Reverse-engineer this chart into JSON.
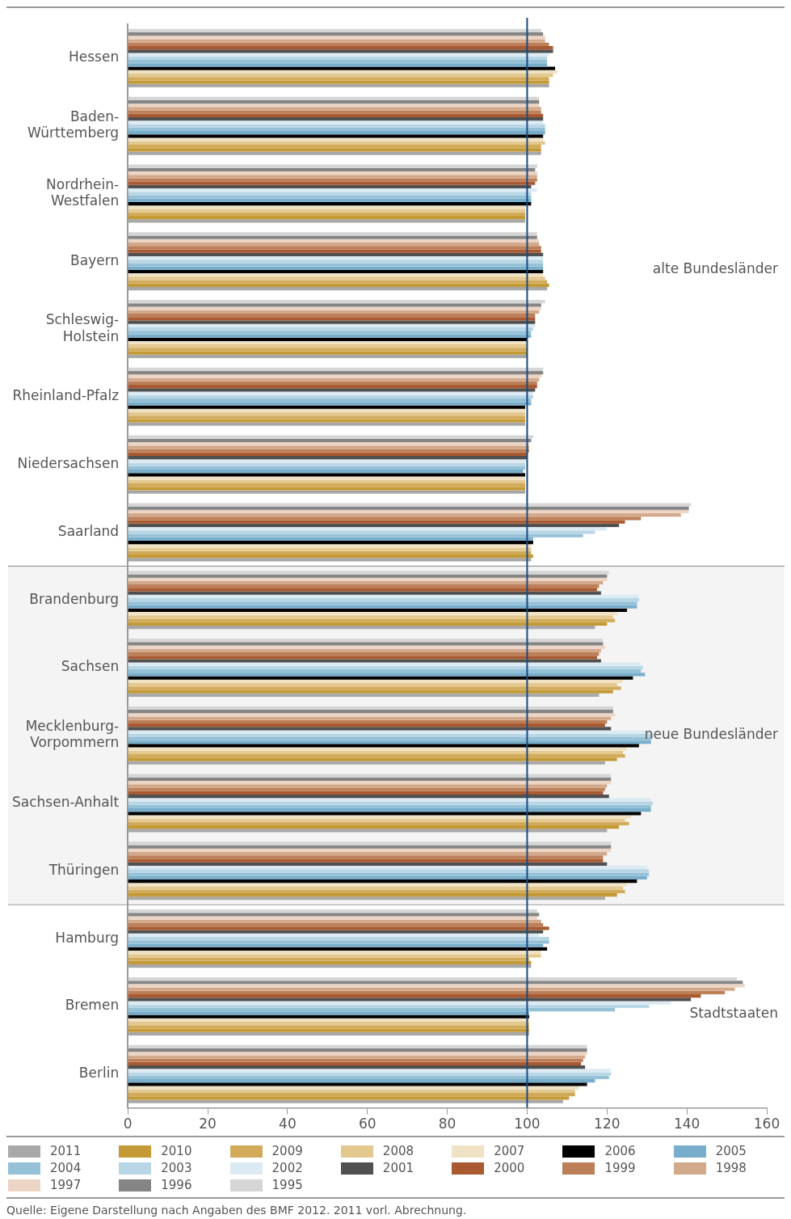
{
  "chart_data": {
    "type": "bar",
    "orientation": "horizontal",
    "categories": [
      "Hessen",
      "Baden-Württemberg",
      "Nordrhein-Westfalen",
      "Bayern",
      "Schleswig-Holstein",
      "Rheinland-Pfalz",
      "Niedersachsen",
      "Saarland",
      "Brandenburg",
      "Sachsen",
      "Mecklenburg-Vorpommern",
      "Sachsen-Anhalt",
      "Thüringen",
      "Hamburg",
      "Bremen",
      "Berlin"
    ],
    "xlim": [
      0,
      160
    ],
    "xticks": [
      0,
      20,
      40,
      60,
      80,
      100,
      120,
      140,
      160
    ],
    "grid": false,
    "legend": "bottom",
    "series": [
      {
        "name": "2011",
        "color": "#a8a8a8",
        "values": [
          105.5,
          103.5,
          99.5,
          105,
          100,
          99.5,
          99.5,
          101,
          117,
          118,
          119.5,
          120,
          119.5,
          101,
          100.5,
          109
        ]
      },
      {
        "name": "2010",
        "color": "#c49a36",
        "values": [
          105.5,
          103.5,
          99.5,
          105.5,
          100,
          99.5,
          99.5,
          101.5,
          120,
          121.5,
          122.5,
          123,
          122.5,
          101,
          100.5,
          110.5
        ]
      },
      {
        "name": "2009",
        "color": "#d2ab5a",
        "values": [
          105.5,
          103.5,
          99.5,
          105,
          100,
          99.5,
          99.5,
          101,
          122,
          123.5,
          124.5,
          125.5,
          124.5,
          100.5,
          100.5,
          112
        ]
      },
      {
        "name": "2008",
        "color": "#e3c88f",
        "values": [
          106.5,
          104.5,
          99.5,
          104.5,
          100,
          99.5,
          99.5,
          101,
          121.5,
          122.5,
          124,
          124.5,
          124,
          103.5,
          100.5,
          112
        ]
      },
      {
        "name": "2007",
        "color": "#f0e2c4",
        "values": [
          107.5,
          104,
          99.5,
          104,
          100,
          99.5,
          99.5,
          101,
          122.5,
          124,
          125,
          126,
          125,
          103.5,
          100.5,
          113
        ]
      },
      {
        "name": "2006",
        "color": "#000000",
        "values": [
          107,
          104,
          101,
          104,
          100,
          99.5,
          99.5,
          101.5,
          125,
          126.5,
          128,
          128.5,
          127.5,
          105,
          100.5,
          115
        ]
      },
      {
        "name": "2005",
        "color": "#78aecb",
        "values": [
          105,
          104.5,
          101,
          104,
          101,
          101,
          99,
          101.5,
          127.5,
          129.5,
          131,
          131,
          130,
          104,
          100.5,
          117
        ]
      },
      {
        "name": "2004",
        "color": "#95c1d7",
        "values": [
          105,
          104.5,
          101,
          104,
          101,
          101,
          99.5,
          114,
          127.5,
          128.5,
          131,
          131,
          130.5,
          105.5,
          122,
          120.5
        ]
      },
      {
        "name": "2003",
        "color": "#b9d6e6",
        "values": [
          105,
          104.5,
          101,
          104,
          101.5,
          101.5,
          99.5,
          117,
          128,
          129,
          131.5,
          131.5,
          130.5,
          105.5,
          130.5,
          121
        ]
      },
      {
        "name": "2002",
        "color": "#dcebf3",
        "values": [
          105.5,
          104,
          102.5,
          104,
          102,
          101.5,
          99.5,
          120,
          128,
          128.5,
          131,
          131,
          130,
          103,
          136,
          121
        ]
      },
      {
        "name": "2001",
        "color": "#505050",
        "values": [
          106.5,
          104,
          101,
          104,
          102,
          102,
          100,
          123,
          118.5,
          118.5,
          121,
          120.5,
          120,
          104,
          141,
          114.5
        ]
      },
      {
        "name": "2000",
        "color": "#a95a30",
        "values": [
          106.5,
          104,
          102,
          103.5,
          102,
          102.5,
          100,
          124.5,
          117.5,
          117.5,
          119.5,
          119,
          119,
          105.5,
          143.5,
          113.5
        ]
      },
      {
        "name": "1999",
        "color": "#bd7f58",
        "values": [
          105.5,
          103.5,
          102.5,
          103.5,
          102,
          102.5,
          100.5,
          128.5,
          118,
          118,
          120,
          119.5,
          119,
          104,
          149.5,
          114
        ]
      },
      {
        "name": "1998",
        "color": "#d3a98b",
        "values": [
          104.5,
          103.5,
          102.5,
          103,
          103,
          103,
          100.5,
          138.5,
          119,
          118.5,
          121,
          120,
          120,
          103.5,
          152,
          114.5
        ]
      },
      {
        "name": "1997",
        "color": "#ecd5c4",
        "values": [
          104.5,
          103,
          102.5,
          103,
          103.5,
          103.5,
          100.5,
          140.5,
          120,
          119.5,
          122,
          121,
          121,
          102.5,
          154.5,
          115
        ]
      },
      {
        "name": "1996",
        "color": "#858585",
        "values": [
          104,
          103,
          102,
          102.5,
          103.5,
          104,
          101,
          140.5,
          120,
          119,
          121.5,
          121,
          121,
          103,
          154,
          115
        ]
      },
      {
        "name": "1995",
        "color": "#d6d6d6",
        "values": [
          103.5,
          103,
          102.5,
          102.5,
          104.5,
          104,
          101.5,
          141,
          120.5,
          119,
          121.5,
          121,
          121,
          102.5,
          152.5,
          115
        ]
      }
    ],
    "ref_lines": [
      {
        "axis": "x",
        "value": 100,
        "color": "#1a4a80"
      }
    ],
    "bands": [
      {
        "axis": "y",
        "from": "Brandenburg",
        "to": "Thüringen",
        "label": "neue Bundesländer",
        "color": "#f4f4f4"
      }
    ],
    "annotations": [
      "alte Bundesländer",
      "Stadtstaaten",
      "Quelle: Eigene Darstellung nach Angaben des BMF 2012. 2011 vorl. Abrechnung."
    ]
  }
}
